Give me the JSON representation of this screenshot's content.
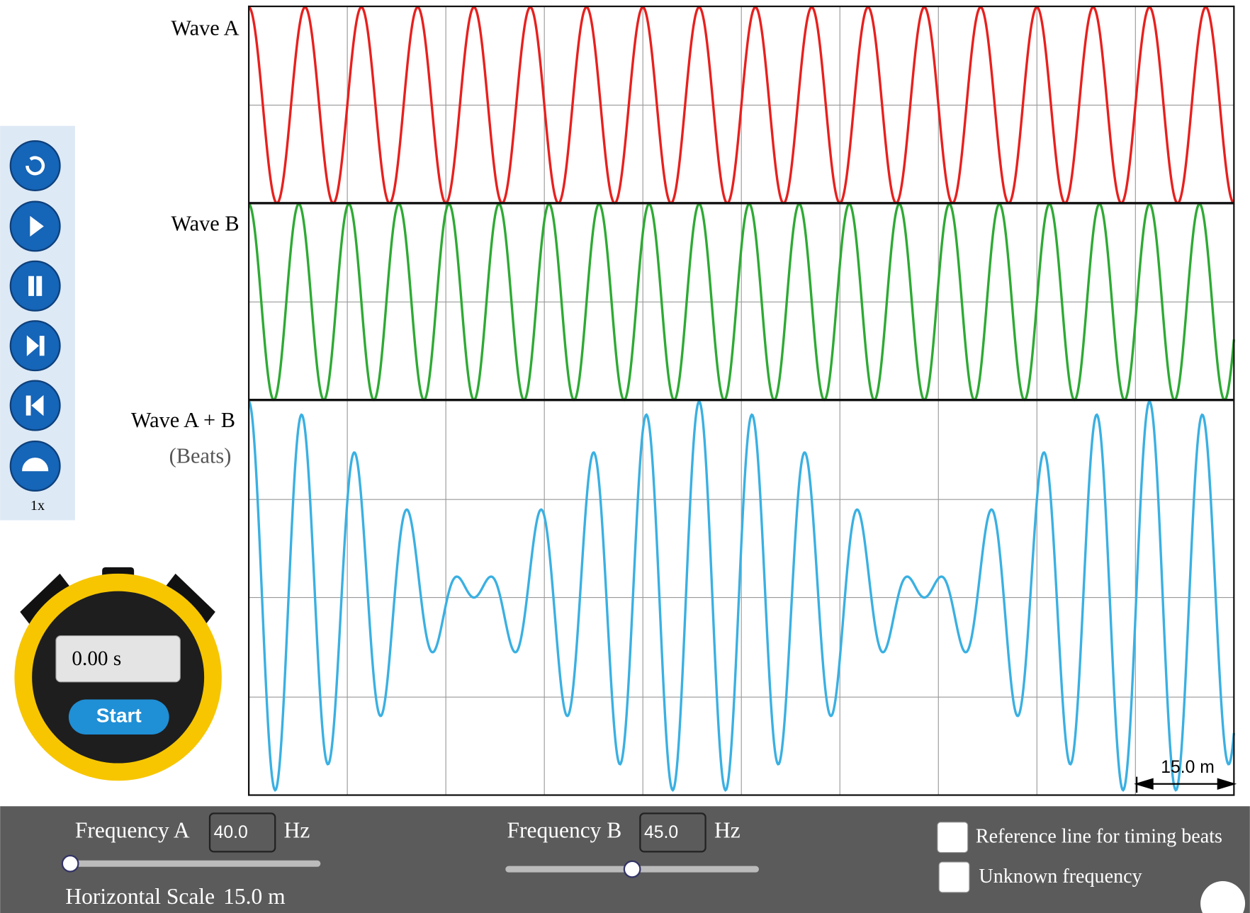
{
  "plot": {
    "wave_a": "Wave A",
    "wave_b": "Wave B",
    "sum": "Wave A + B",
    "sum_note": "(Beats)",
    "scale_label": "15.0 m"
  },
  "toolbar": {
    "speed": "1x"
  },
  "stopwatch": {
    "time": "0.00 s",
    "button": "Start"
  },
  "controls": {
    "frequency_a": {
      "label": "Frequency A",
      "value": "40.0",
      "unit": "Hz"
    },
    "frequency_b": {
      "label": "Frequency B",
      "value": "45.0",
      "unit": "Hz"
    },
    "horizontal_scale": {
      "label": "Horizontal Scale",
      "value": "15.0 m"
    },
    "checkboxes": [
      "Reference line for timing beats",
      "Unknown frequency"
    ]
  }
}
